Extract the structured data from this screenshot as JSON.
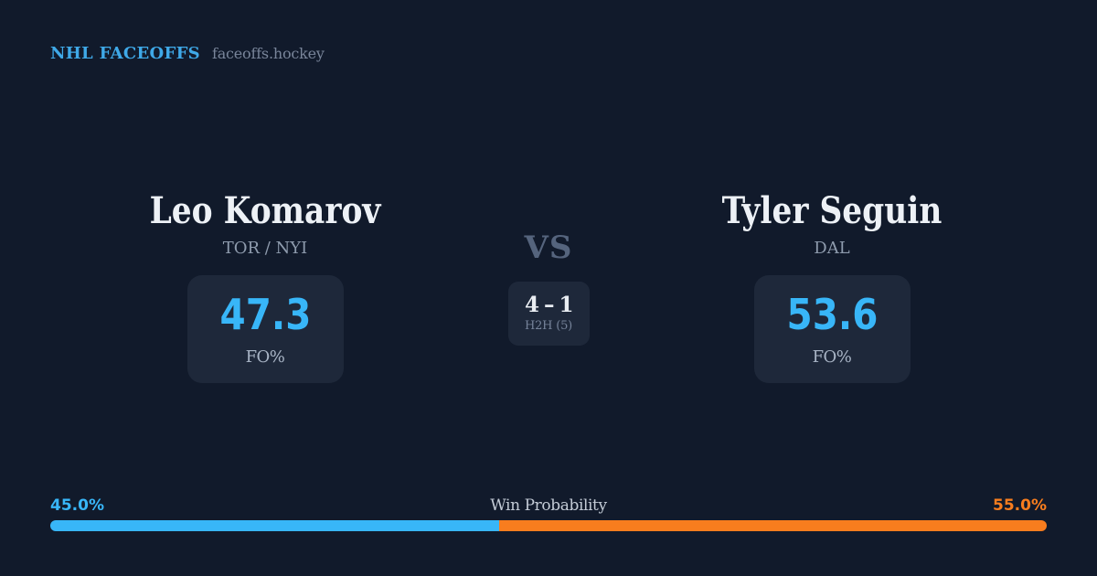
{
  "header": {
    "title": "NHL FACEOFFS",
    "site": "faceoffs.hockey"
  },
  "matchup": {
    "vs_label": "VS",
    "left": {
      "name": "Leo Komarov",
      "team": "TOR / NYI",
      "fo_pct": "47.3",
      "stat_label": "FO%"
    },
    "right": {
      "name": "Tyler Seguin",
      "team": "DAL",
      "fo_pct": "53.6",
      "stat_label": "FO%"
    },
    "h2h": {
      "score": "4 – 1",
      "label": "H2H (5)"
    }
  },
  "win_probability": {
    "label": "Win Probability",
    "left_pct_label": "45.0%",
    "right_pct_label": "55.0%",
    "left_value": 45.0,
    "right_value": 55.0
  },
  "colors": {
    "background": "#111A2B",
    "card": "#1E283A",
    "accent_blue": "#38B6F8",
    "accent_orange": "#F87D1E",
    "header_blue": "#3FA9E8"
  },
  "chart_data": {
    "type": "bar",
    "title": "Win Probability",
    "categories": [
      "Leo Komarov (TOR / NYI)",
      "Tyler Seguin (DAL)"
    ],
    "series": [
      {
        "name": "Win Probability %",
        "values": [
          45.0,
          55.0
        ]
      },
      {
        "name": "Faceoff %",
        "values": [
          47.3,
          53.6
        ]
      },
      {
        "name": "H2H wins (last 5)",
        "values": [
          4,
          1
        ]
      }
    ],
    "xlim": [
      0,
      100
    ],
    "legend": false
  }
}
